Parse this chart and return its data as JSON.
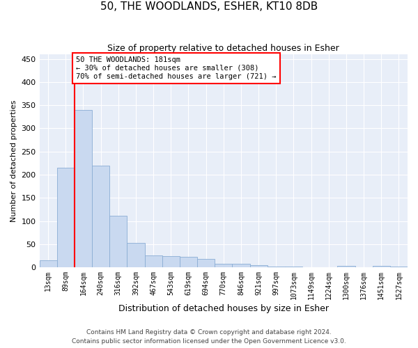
{
  "title": "50, THE WOODLANDS, ESHER, KT10 8DB",
  "subtitle": "Size of property relative to detached houses in Esher",
  "xlabel": "Distribution of detached houses by size in Esher",
  "ylabel": "Number of detached properties",
  "categories": [
    "13sqm",
    "89sqm",
    "164sqm",
    "240sqm",
    "316sqm",
    "392sqm",
    "467sqm",
    "543sqm",
    "619sqm",
    "694sqm",
    "770sqm",
    "846sqm",
    "921sqm",
    "997sqm",
    "1073sqm",
    "1149sqm",
    "1224sqm",
    "1300sqm",
    "1376sqm",
    "1451sqm",
    "1527sqm"
  ],
  "values": [
    15,
    215,
    340,
    220,
    112,
    53,
    25,
    24,
    23,
    18,
    8,
    7,
    5,
    2,
    2,
    0,
    0,
    3,
    0,
    3,
    2
  ],
  "bar_color": "#c9d9f0",
  "bar_edge_color": "#8aadd4",
  "property_sqm": 181,
  "annotation_title": "50 THE WOODLANDS: 181sqm",
  "annotation_line2": "← 30% of detached houses are smaller (308)",
  "annotation_line3": "70% of semi-detached houses are larger (721) →",
  "footer1": "Contains HM Land Registry data © Crown copyright and database right 2024.",
  "footer2": "Contains public sector information licensed under the Open Government Licence v3.0.",
  "ylim": [
    0,
    460
  ],
  "yticks": [
    0,
    50,
    100,
    150,
    200,
    250,
    300,
    350,
    400,
    450
  ],
  "background_color": "#ffffff",
  "plot_bg_color": "#e8eef8"
}
